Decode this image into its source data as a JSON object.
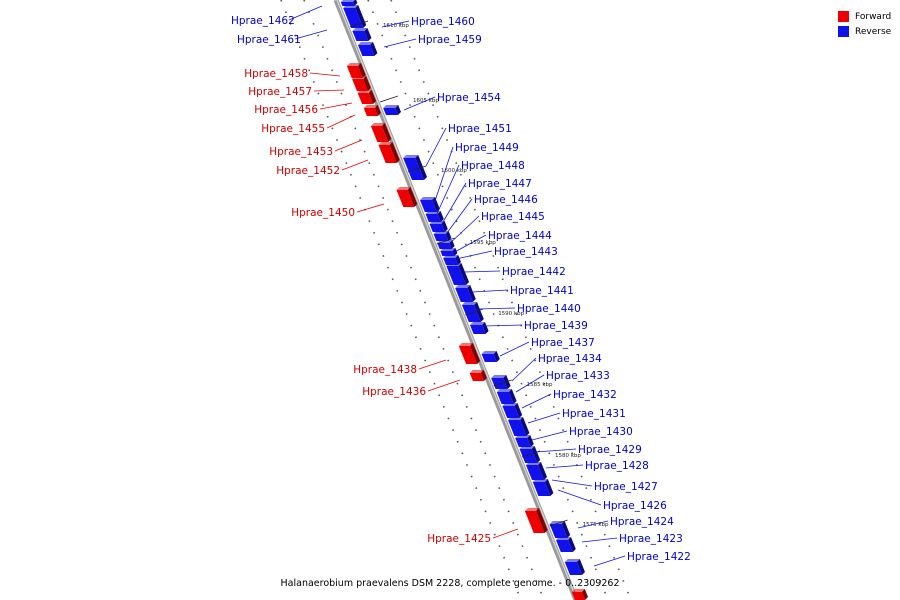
{
  "legend": {
    "forward": {
      "label": "Forward",
      "color": "#ee0000"
    },
    "reverse": {
      "label": "Reverse",
      "color": "#1111ee"
    }
  },
  "caption": "Halanaerobium praevalens DSM 2228, complete genome. - 0..2309262",
  "colors": {
    "forward": "#ee0000",
    "reverse": "#1111ee",
    "backbone": "#9a9a9a"
  },
  "ticks": [
    "1610 kbp",
    "1605 kbp",
    "1600 kbp",
    "1595 kbp",
    "1590 kbp",
    "1585 kbp",
    "1580 kbp",
    "1575 kbp"
  ],
  "genes": {
    "forward": [
      "Hprae_1458",
      "Hprae_1457",
      "Hprae_1456",
      "Hprae_1455",
      "Hprae_1453",
      "Hprae_1452",
      "Hprae_1450",
      "Hprae_1438",
      "Hprae_1436",
      "Hprae_1425"
    ],
    "reverse": [
      "Hprae_1462",
      "Hprae_1461",
      "Hprae_1460",
      "Hprae_1459",
      "Hprae_1454",
      "Hprae_1451",
      "Hprae_1449",
      "Hprae_1448",
      "Hprae_1447",
      "Hprae_1446",
      "Hprae_1445",
      "Hprae_1444",
      "Hprae_1443",
      "Hprae_1442",
      "Hprae_1441",
      "Hprae_1440",
      "Hprae_1439",
      "Hprae_1437",
      "Hprae_1434",
      "Hprae_1433",
      "Hprae_1432",
      "Hprae_1431",
      "Hprae_1430",
      "Hprae_1429",
      "Hprae_1428",
      "Hprae_1427",
      "Hprae_1426",
      "Hprae_1424",
      "Hprae_1423",
      "Hprae_1422"
    ]
  }
}
